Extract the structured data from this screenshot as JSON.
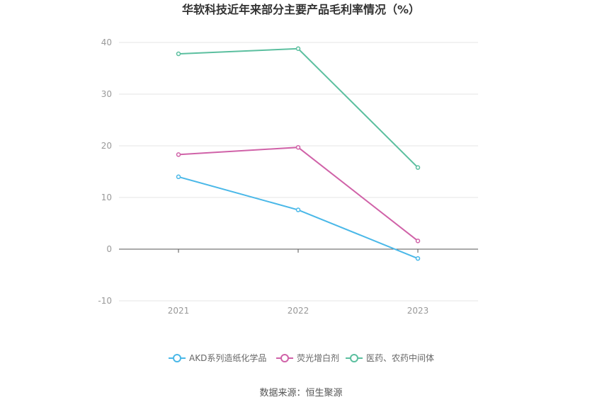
{
  "chart_data": {
    "type": "line",
    "title": "华软科技近年来部分主要产品毛利率情况（%）",
    "x": [
      "2021",
      "2022",
      "2023"
    ],
    "ylim": [
      -10,
      40
    ],
    "yticks": [
      "-10",
      "0",
      "10",
      "20",
      "30",
      "40"
    ],
    "grid": true,
    "legend_position": "bottom",
    "series": [
      {
        "name": "AKD系列造纸化学品",
        "color": "#4ab8e8",
        "values": [
          14.0,
          7.6,
          -1.8
        ]
      },
      {
        "name": "荧光增白剂",
        "color": "#d062a8",
        "values": [
          18.3,
          19.7,
          1.6
        ]
      },
      {
        "name": "医药、农药中间体",
        "color": "#5bbf9f",
        "values": [
          37.8,
          38.8,
          15.8
        ]
      }
    ],
    "source": "数据来源：恒生聚源"
  }
}
